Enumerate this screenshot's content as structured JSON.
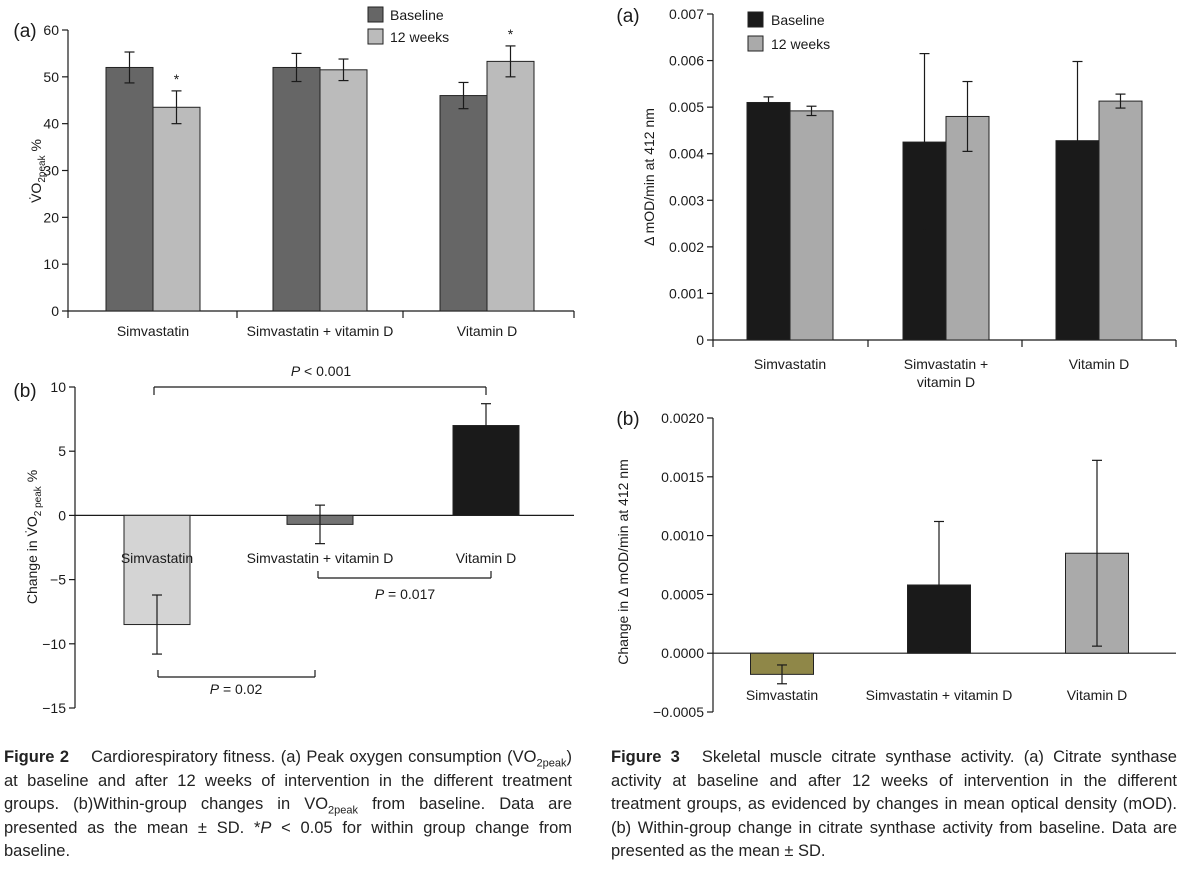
{
  "colors": {
    "f2_baseline": "#666666",
    "f2_12weeks": "#bbbbbb",
    "f3_baseline": "#1a1a1a",
    "f3_12weeks": "#aaaaaa",
    "f2b_simva": "#d4d4d4",
    "f2b_combo": "#737373",
    "f2b_vitd": "#1a1a1a",
    "f3b_simva": "#8f8748",
    "f3b_combo": "#1a1a1a",
    "f3b_vitd": "#aaaaaa"
  },
  "chart_data": [
    {
      "id": "fig2a",
      "panel_label": "(a)",
      "type": "bar",
      "categories": [
        "Simvastatin",
        "Simvastatin + vitamin D",
        "Vitamin D"
      ],
      "series": [
        {
          "name": "Baseline",
          "values": [
            52,
            52,
            46
          ],
          "errors": [
            3.3,
            3.0,
            2.8
          ]
        },
        {
          "name": "12 weeks",
          "values": [
            43.5,
            51.5,
            53.3
          ],
          "errors": [
            3.5,
            2.3,
            3.3
          ]
        }
      ],
      "significance": [
        {
          "series": 1,
          "category": 0,
          "mark": "*"
        },
        {
          "series": 1,
          "category": 2,
          "mark": "*"
        }
      ],
      "ylim": [
        0,
        60
      ],
      "yticks": [
        "0",
        "10",
        "20",
        "30",
        "40",
        "50",
        "60"
      ],
      "ylabel_main": "V̇O",
      "ylabel_sub": "2peak",
      "ylabel_suffix": " %",
      "legend": "top-right"
    },
    {
      "id": "fig2b",
      "panel_label": "(b)",
      "type": "bar",
      "categories": [
        "Simvastatin",
        "Simvastatin + vitamin D",
        "Vitamin D"
      ],
      "values": [
        -8.5,
        -0.7,
        7.0
      ],
      "errors": [
        2.3,
        1.5,
        1.7
      ],
      "ylim": [
        -15,
        10
      ],
      "yticks": [
        "−15",
        "−10",
        "−5",
        "0",
        "5",
        "10"
      ],
      "ylabel_main": "Change in V̇O",
      "ylabel_sub": "2 peak",
      "ylabel_suffix": " %",
      "comparisons": [
        {
          "text": "P < 0.001",
          "from": 0,
          "to": 2,
          "position": "top"
        },
        {
          "text": "P = 0.017",
          "from": 1,
          "to": 2,
          "position": "middle"
        },
        {
          "text": "P = 0.02",
          "from": 0,
          "to": 1,
          "position": "bottom"
        }
      ]
    },
    {
      "id": "fig3a",
      "panel_label": "(a)",
      "type": "bar",
      "categories": [
        "Simvastatin",
        "Simvastatin + vitamin D",
        "Vitamin D"
      ],
      "category_lines": [
        [
          "Simvastatin"
        ],
        [
          "Simvastatin +",
          "vitamin D"
        ],
        [
          "Vitamin D"
        ]
      ],
      "series": [
        {
          "name": "Baseline",
          "values": [
            0.0051,
            0.00425,
            0.00428
          ],
          "errors": [
            0.00012,
            0.0019,
            0.0017
          ]
        },
        {
          "name": "12 weeks",
          "values": [
            0.00492,
            0.0048,
            0.00513
          ],
          "errors": [
            0.0001,
            0.00075,
            0.00015
          ]
        }
      ],
      "ylim": [
        0,
        0.007
      ],
      "yticks": [
        "0",
        "0.001",
        "0.002",
        "0.003",
        "0.004",
        "0.005",
        "0.006",
        "0.007"
      ],
      "ylabel": "Δ mOD/min at 412 nm",
      "legend": "top-left"
    },
    {
      "id": "fig3b",
      "panel_label": "(b)",
      "type": "bar",
      "categories": [
        "Simvastatin",
        "Simvastatin + vitamin D",
        "Vitamin D"
      ],
      "values": [
        -0.00018,
        0.00058,
        0.00085
      ],
      "errors": [
        8e-05,
        0.00054,
        0.00079
      ],
      "ylim": [
        -0.0005,
        0.002
      ],
      "yticks": [
        "−0.0005",
        "0.0000",
        "0.0005",
        "0.0010",
        "0.0015",
        "0.0020"
      ],
      "ylabel": "Change in Δ mOD/min at 412 nm"
    }
  ],
  "captions": {
    "fig2": {
      "label": "Figure 2",
      "text_html": "Cardiorespiratory fitness. (a) Peak oxygen consumption (VO<sub>2peak</sub>) at baseline and after 12 weeks of intervention in the different treatment groups. (b)Within-group changes in VO<sub>2peak</sub> from baseline. Data are presented as the mean ± SD. *<i>P</i> &lt; 0.05 for within group change from baseline."
    },
    "fig3": {
      "label": "Figure 3",
      "text": "Skeletal muscle citrate synthase activity. (a) Citrate synthase activity at baseline and after 12 weeks of intervention in the different treatment groups, as evidenced by changes in mean optical density (mOD). (b) Within-group change in citrate synthase activity from baseline. Data are presented as the mean ± SD."
    }
  }
}
